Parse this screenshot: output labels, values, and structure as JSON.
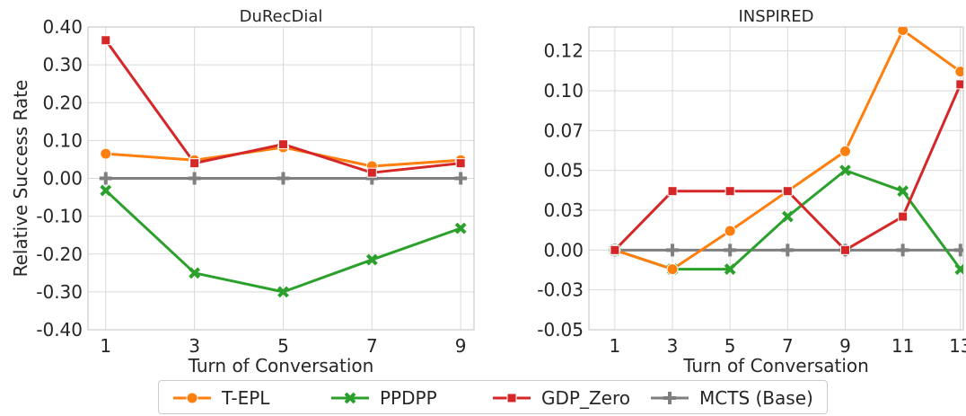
{
  "chart_data": [
    {
      "type": "line",
      "title": "DuRecDial",
      "xlabel": "Turn of Conversation",
      "ylabel": "Relative Success Rate",
      "x": [
        1,
        3,
        5,
        7,
        9
      ],
      "xticks": [
        "1",
        "3",
        "5",
        "7",
        "9"
      ],
      "xlim": [
        0.6,
        9.3
      ],
      "yticks": [
        "-0.40",
        "-0.30",
        "-0.20",
        "-0.10",
        "0.00",
        "0.10",
        "0.20",
        "0.30",
        "0.40"
      ],
      "ytick_values": [
        -0.4,
        -0.3,
        -0.2,
        -0.1,
        0.0,
        0.1,
        0.2,
        0.3,
        0.4
      ],
      "ylim": [
        -0.4,
        0.4
      ],
      "grid": true,
      "series": [
        {
          "name": "T-EPL",
          "values": [
            0.065,
            0.048,
            0.082,
            0.032,
            0.048
          ]
        },
        {
          "name": "PPDPP",
          "values": [
            -0.032,
            -0.25,
            -0.3,
            -0.215,
            -0.132
          ]
        },
        {
          "name": "GDP_Zero",
          "values": [
            0.365,
            0.04,
            0.09,
            0.015,
            0.04
          ]
        },
        {
          "name": "MCTS (Base)",
          "values": [
            0.0,
            0.0,
            0.0,
            0.0,
            0.0
          ]
        }
      ]
    },
    {
      "type": "line",
      "title": "INSPIRED",
      "xlabel": "Turn of Conversation",
      "ylabel": "",
      "x": [
        1,
        3,
        5,
        7,
        9,
        11,
        13
      ],
      "xticks": [
        "1",
        "3",
        "5",
        "7",
        "9",
        "11",
        "13"
      ],
      "xlim": [
        0.1,
        13.1
      ],
      "yticks": [
        "-0.05",
        "-0.03",
        "0.00",
        "0.03",
        "0.05",
        "0.07",
        "0.10",
        "0.12"
      ],
      "ytick_values": [
        -0.05,
        -0.025,
        0.0,
        0.025,
        0.05,
        0.075,
        0.1,
        0.125
      ],
      "ylim": [
        -0.05,
        0.14
      ],
      "grid": true,
      "series": [
        {
          "name": "T-EPL",
          "values": [
            0.0,
            -0.012,
            0.012,
            0.037,
            0.062,
            0.138,
            0.112
          ]
        },
        {
          "name": "PPDPP",
          "values": [
            0.0,
            -0.012,
            -0.012,
            0.021,
            0.05,
            0.037,
            -0.012
          ]
        },
        {
          "name": "GDP_Zero",
          "values": [
            0.0,
            0.037,
            0.037,
            0.037,
            0.0,
            0.021,
            0.104
          ]
        },
        {
          "name": "MCTS (Base)",
          "values": [
            0.0,
            0.0,
            0.0,
            0.0,
            0.0,
            0.0,
            0.0
          ]
        }
      ]
    }
  ],
  "legend": {
    "placement": "bottom-center",
    "items": [
      {
        "name": "T-EPL",
        "color": "#ff7f0e",
        "marker": "circle"
      },
      {
        "name": "PPDPP",
        "color": "#2ca02c",
        "marker": "x"
      },
      {
        "name": "GDP_Zero",
        "color": "#d62728",
        "marker": "square"
      },
      {
        "name": "MCTS (Base)",
        "color": "#7f7f7f",
        "marker": "plus"
      }
    ]
  }
}
